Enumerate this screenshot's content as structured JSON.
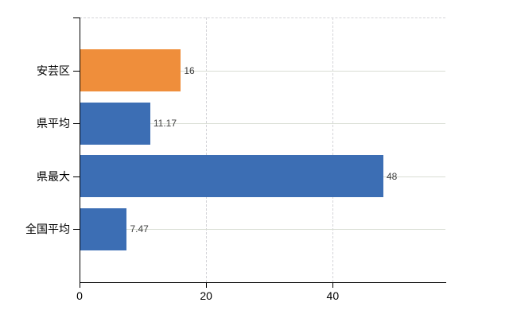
{
  "chart_data": {
    "type": "bar",
    "orientation": "horizontal",
    "title": "",
    "xlabel": "",
    "ylabel": "",
    "categories": [
      "安芸区",
      "県平均",
      "県最大",
      "全国平均"
    ],
    "values": [
      16,
      11.17,
      48,
      7.47
    ],
    "value_labels": [
      "16",
      "11.17",
      "48",
      "7.47"
    ],
    "bar_colors": [
      "#EF8E3B",
      "#3C6EB4",
      "#3C6EB4",
      "#3C6EB4"
    ],
    "highlight_color": "#EF8E3B",
    "default_color": "#3C6EB4",
    "xticks": [
      0,
      20,
      40
    ],
    "xtick_labels": [
      "0",
      "20",
      "40"
    ],
    "xlim": [
      0,
      57.8
    ],
    "grid": true,
    "legend": false,
    "gridline_color_horizontal": "#d9ded4",
    "gridline_color_vertical": "#d4d4d8",
    "axis_color": "#000000",
    "value_label_color": "#3f3f3f",
    "background_color": "#ffffff"
  }
}
